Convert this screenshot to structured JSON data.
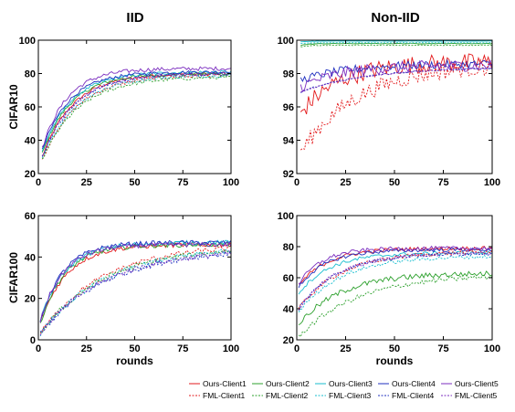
{
  "figure": {
    "col_titles": [
      "IID",
      "Non-IID"
    ],
    "row_labels": [
      "CIFAR10",
      "CIFAR100"
    ]
  },
  "legend": {
    "entries": [
      {
        "name": "Ours-Client1",
        "color": "#e31a1c",
        "dash": "solid"
      },
      {
        "name": "Ours-Client2",
        "color": "#2ca02c",
        "dash": "solid"
      },
      {
        "name": "Ours-Client3",
        "color": "#17becf",
        "dash": "solid"
      },
      {
        "name": "Ours-Client4",
        "color": "#1f2fbf",
        "dash": "solid"
      },
      {
        "name": "Ours-Client5",
        "color": "#7b2cbf",
        "dash": "solid"
      },
      {
        "name": "FML-Client1",
        "color": "#e31a1c",
        "dash": "dotted"
      },
      {
        "name": "FML-Client2",
        "color": "#2ca02c",
        "dash": "dotted"
      },
      {
        "name": "FML-Client3",
        "color": "#17becf",
        "dash": "dotted"
      },
      {
        "name": "FML-Client4",
        "color": "#1f2fbf",
        "dash": "dotted"
      },
      {
        "name": "FML-Client5",
        "color": "#7b2cbf",
        "dash": "dotted"
      }
    ]
  },
  "chart_data": [
    {
      "type": "line",
      "title": "IID",
      "ylabel": "CIFAR10",
      "xlabel": "",
      "xlim": [
        0,
        100
      ],
      "ylim": [
        20,
        100
      ],
      "xticks": [
        0,
        25,
        50,
        75,
        100
      ],
      "yticks": [
        20,
        40,
        60,
        80,
        100
      ],
      "curve_model": {
        "kind": "saturating",
        "x0": 2
      },
      "series": [
        {
          "name": "Ours-Client1",
          "start": 30,
          "plateau": 80,
          "tau": 16,
          "noise": 1.0
        },
        {
          "name": "Ours-Client2",
          "start": 32,
          "plateau": 80,
          "tau": 15,
          "noise": 1.0
        },
        {
          "name": "Ours-Client3",
          "start": 33,
          "plateau": 81,
          "tau": 15,
          "noise": 1.0
        },
        {
          "name": "Ours-Client4",
          "start": 34,
          "plateau": 81,
          "tau": 14,
          "noise": 1.0
        },
        {
          "name": "Ours-Client5",
          "start": 35,
          "plateau": 83,
          "tau": 13,
          "noise": 1.2
        },
        {
          "name": "FML-Client1",
          "start": 28,
          "plateau": 79,
          "tau": 18,
          "noise": 1.0
        },
        {
          "name": "FML-Client2",
          "start": 28,
          "plateau": 78,
          "tau": 19,
          "noise": 1.0
        },
        {
          "name": "FML-Client3",
          "start": 29,
          "plateau": 79,
          "tau": 18,
          "noise": 1.0
        },
        {
          "name": "FML-Client4",
          "start": 30,
          "plateau": 80,
          "tau": 17,
          "noise": 1.0
        },
        {
          "name": "FML-Client5",
          "start": 30,
          "plateau": 80,
          "tau": 17,
          "noise": 1.0
        }
      ]
    },
    {
      "type": "line",
      "title": "Non-IID",
      "ylabel": "",
      "xlabel": "",
      "xlim": [
        0,
        100
      ],
      "ylim": [
        92,
        100
      ],
      "xticks": [
        0,
        25,
        50,
        75,
        100
      ],
      "yticks": [
        92,
        94,
        96,
        98,
        100
      ],
      "curve_model": {
        "kind": "saturating",
        "x0": 2
      },
      "series": [
        {
          "name": "Ours-Client1",
          "start": 95.6,
          "plateau": 98.7,
          "tau": 20,
          "noise": 0.55
        },
        {
          "name": "Ours-Client2",
          "start": 99.7,
          "plateau": 99.8,
          "tau": 5,
          "noise": 0.02
        },
        {
          "name": "Ours-Client3",
          "start": 99.9,
          "plateau": 99.95,
          "tau": 5,
          "noise": 0.01
        },
        {
          "name": "Ours-Client4",
          "start": 97.6,
          "plateau": 98.6,
          "tau": 25,
          "noise": 0.25
        },
        {
          "name": "Ours-Client5",
          "start": 97.2,
          "plateau": 98.5,
          "tau": 22,
          "noise": 0.35
        },
        {
          "name": "FML-Client1",
          "start": 93.3,
          "plateau": 98.6,
          "tau": 30,
          "noise": 0.5
        },
        {
          "name": "FML-Client2",
          "start": 99.6,
          "plateau": 99.7,
          "tau": 5,
          "noise": 0.02
        },
        {
          "name": "FML-Client3",
          "start": 99.8,
          "plateau": 99.85,
          "tau": 5,
          "noise": 0.01
        },
        {
          "name": "FML-Client4",
          "start": 96.9,
          "plateau": 98.4,
          "tau": 35,
          "noise": 0.05
        },
        {
          "name": "FML-Client5",
          "start": 96.9,
          "plateau": 98.4,
          "tau": 35,
          "noise": 0.05
        }
      ]
    },
    {
      "type": "line",
      "title": "",
      "ylabel": "CIFAR100",
      "xlabel": "rounds",
      "xlim": [
        0,
        100
      ],
      "ylim": [
        0,
        60
      ],
      "xticks": [
        0,
        25,
        50,
        75,
        100
      ],
      "yticks": [
        0,
        20,
        40,
        60
      ],
      "curve_model": {
        "kind": "saturating",
        "x0": 1
      },
      "series": [
        {
          "name": "Ours-Client1",
          "start": 8,
          "plateau": 46,
          "tau": 14,
          "noise": 1.1
        },
        {
          "name": "Ours-Client2",
          "start": 8,
          "plateau": 46,
          "tau": 13,
          "noise": 1.1
        },
        {
          "name": "Ours-Client3",
          "start": 9,
          "plateau": 47,
          "tau": 13,
          "noise": 1.1
        },
        {
          "name": "Ours-Client4",
          "start": 9,
          "plateau": 47,
          "tau": 12,
          "noise": 1.1
        },
        {
          "name": "Ours-Client5",
          "start": 9,
          "plateau": 46,
          "tau": 12,
          "noise": 1.1
        },
        {
          "name": "FML-Client1",
          "start": 3,
          "plateau": 46,
          "tau": 32,
          "noise": 1.3
        },
        {
          "name": "FML-Client2",
          "start": 3,
          "plateau": 45,
          "tau": 33,
          "noise": 1.3
        },
        {
          "name": "FML-Client3",
          "start": 3,
          "plateau": 45,
          "tau": 34,
          "noise": 1.3
        },
        {
          "name": "FML-Client4",
          "start": 3,
          "plateau": 44,
          "tau": 35,
          "noise": 1.3
        },
        {
          "name": "FML-Client5",
          "start": 3,
          "plateau": 44,
          "tau": 34,
          "noise": 1.3
        }
      ]
    },
    {
      "type": "line",
      "title": "",
      "ylabel": "",
      "xlabel": "rounds",
      "xlim": [
        0,
        100
      ],
      "ylim": [
        20,
        100
      ],
      "xticks": [
        0,
        25,
        50,
        75,
        100
      ],
      "yticks": [
        20,
        40,
        60,
        80,
        100
      ],
      "curve_model": {
        "kind": "saturating",
        "x0": 1
      },
      "series": [
        {
          "name": "Ours-Client1",
          "start": 55,
          "plateau": 79,
          "tau": 15,
          "noise": 1.3
        },
        {
          "name": "Ours-Client2",
          "start": 30,
          "plateau": 63,
          "tau": 22,
          "noise": 1.8
        },
        {
          "name": "Ours-Client3",
          "start": 50,
          "plateau": 76,
          "tau": 16,
          "noise": 1.2
        },
        {
          "name": "Ours-Client4",
          "start": 54,
          "plateau": 78,
          "tau": 14,
          "noise": 1.2
        },
        {
          "name": "Ours-Client5",
          "start": 56,
          "plateau": 79,
          "tau": 12,
          "noise": 1.3
        },
        {
          "name": "FML-Client1",
          "start": 40,
          "plateau": 77,
          "tau": 22,
          "noise": 1.3
        },
        {
          "name": "FML-Client2",
          "start": 22,
          "plateau": 62,
          "tau": 30,
          "noise": 1.6
        },
        {
          "name": "FML-Client3",
          "start": 38,
          "plateau": 74,
          "tau": 22,
          "noise": 1.2
        },
        {
          "name": "FML-Client4",
          "start": 40,
          "plateau": 76,
          "tau": 20,
          "noise": 1.2
        },
        {
          "name": "FML-Client5",
          "start": 40,
          "plateau": 76,
          "tau": 20,
          "noise": 1.2
        }
      ]
    }
  ]
}
